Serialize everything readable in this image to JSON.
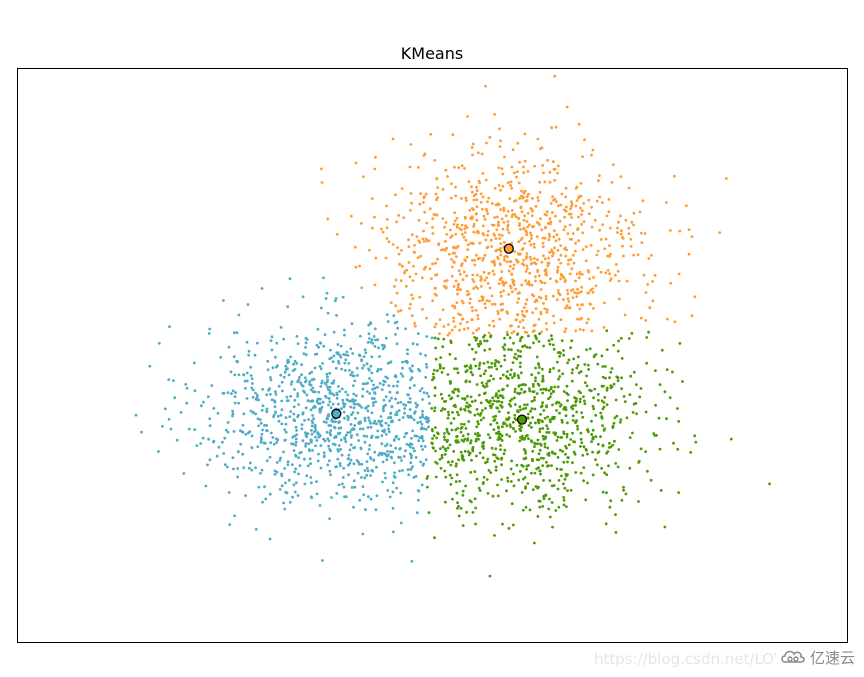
{
  "chart_data": {
    "type": "scatter",
    "title": "KMeans",
    "xlabel": "",
    "ylabel": "",
    "axes_ticks": "none",
    "grid": false,
    "xlim": [
      -2.95,
      3.3
    ],
    "ylim": [
      -2.9,
      3.0
    ],
    "clusters": [
      {
        "color": "#4EACC5",
        "center": [
          -0.55,
          -0.55
        ],
        "spread": [
          0.52,
          0.46
        ],
        "count": 1000
      },
      {
        "color": "#FF9C34",
        "center": [
          0.75,
          1.1
        ],
        "spread": [
          0.52,
          0.55
        ],
        "count": 1000
      },
      {
        "color": "#4E9A06",
        "center": [
          0.85,
          -0.6
        ],
        "spread": [
          0.5,
          0.5
        ],
        "count": 1000
      }
    ],
    "centroids": [
      {
        "color": "#4EACC5",
        "x": -0.55,
        "y": -0.55
      },
      {
        "color": "#FF9C34",
        "x": 0.75,
        "y": 1.15
      },
      {
        "color": "#4E9A06",
        "x": 0.85,
        "y": -0.61
      }
    ]
  },
  "watermark": {
    "url": "https://blog.csdn.net/LOV",
    "brand": "亿速云"
  }
}
